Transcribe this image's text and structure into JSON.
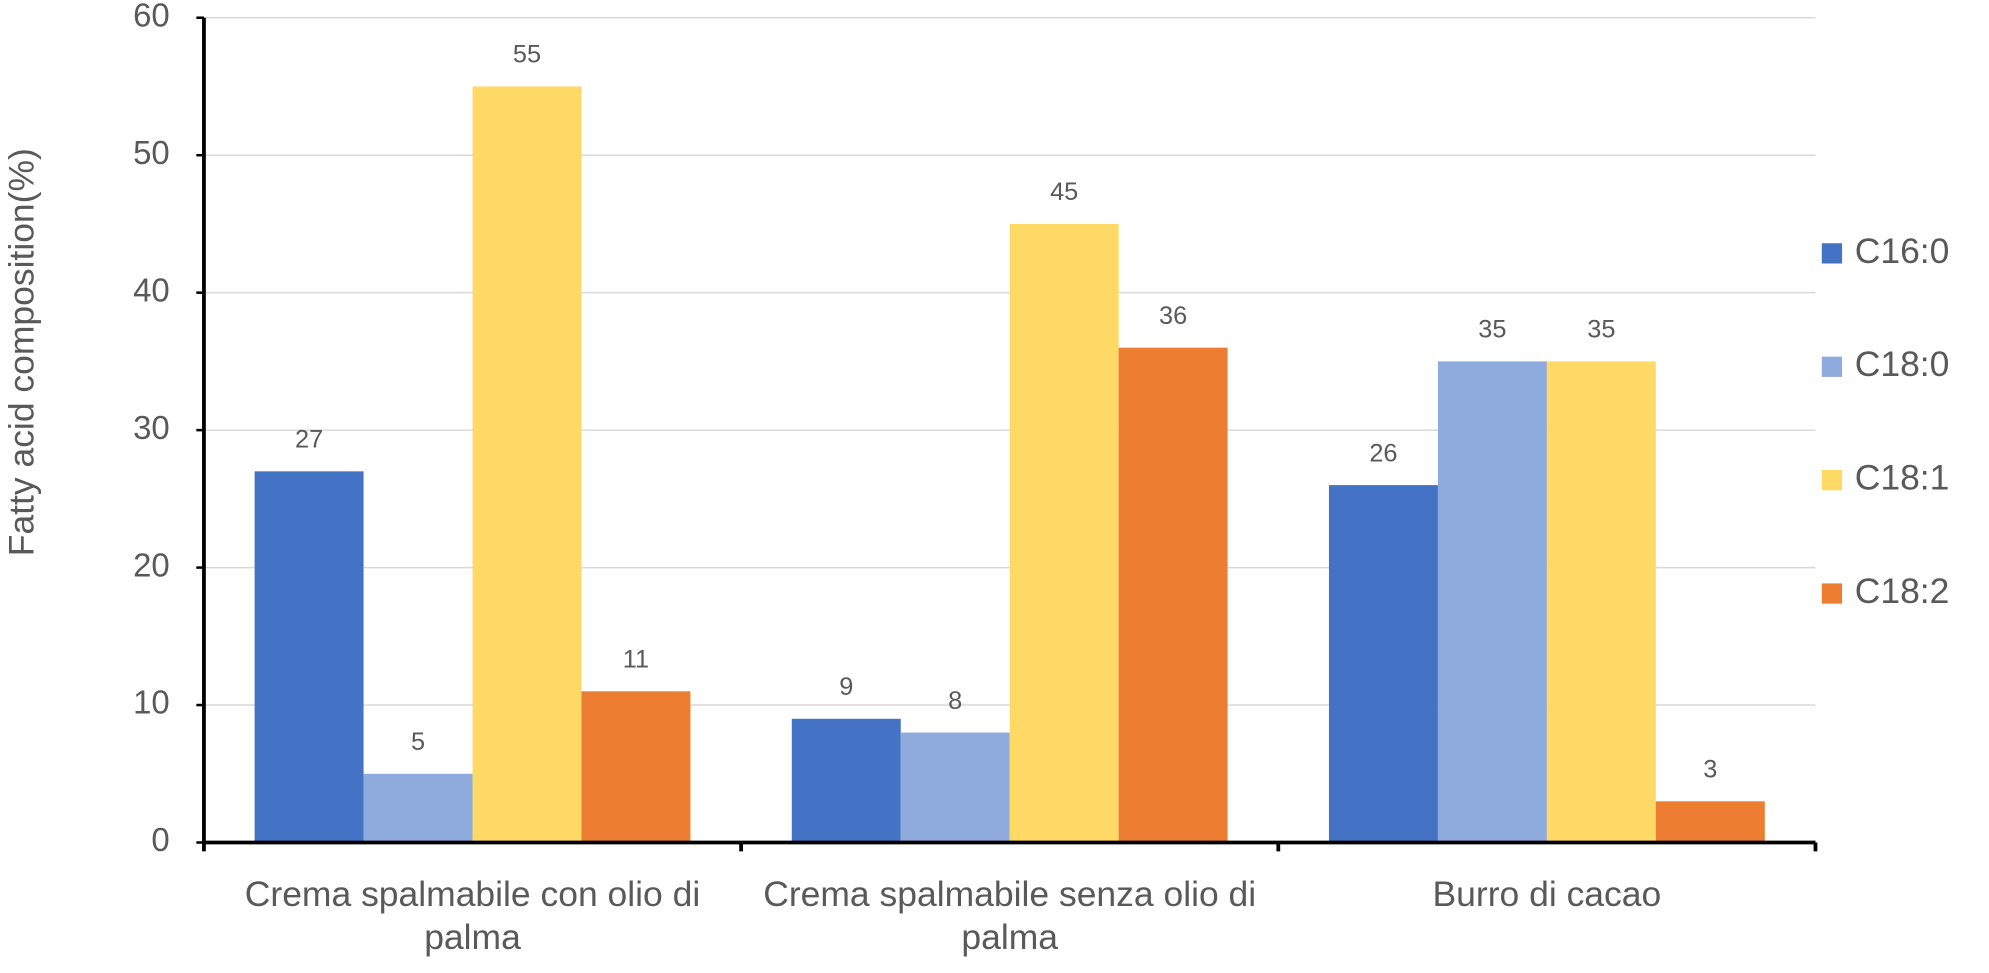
{
  "chart_data": {
    "type": "bar",
    "y_label": "Fatty acid composition(%)",
    "categories": [
      "Crema spalmabile con olio di palma",
      "Crema spalmabile senza olio di palma",
      "Burro di cacao"
    ],
    "series": [
      {
        "name": "C16:0",
        "color": "#4472c4",
        "values": [
          27,
          9,
          26
        ]
      },
      {
        "name": "C18:0",
        "color": "#8faadc",
        "values": [
          5,
          8,
          35
        ]
      },
      {
        "name": "C18:1",
        "color": "#ffd966",
        "values": [
          55,
          45,
          35
        ]
      },
      {
        "name": "C18:2",
        "color": "#ed7d31",
        "values": [
          11,
          36,
          3
        ]
      }
    ],
    "ylim": [
      0,
      60
    ],
    "yticks": [
      0,
      10,
      20,
      30,
      40,
      50,
      60
    ],
    "grid": true,
    "legend": "right"
  }
}
